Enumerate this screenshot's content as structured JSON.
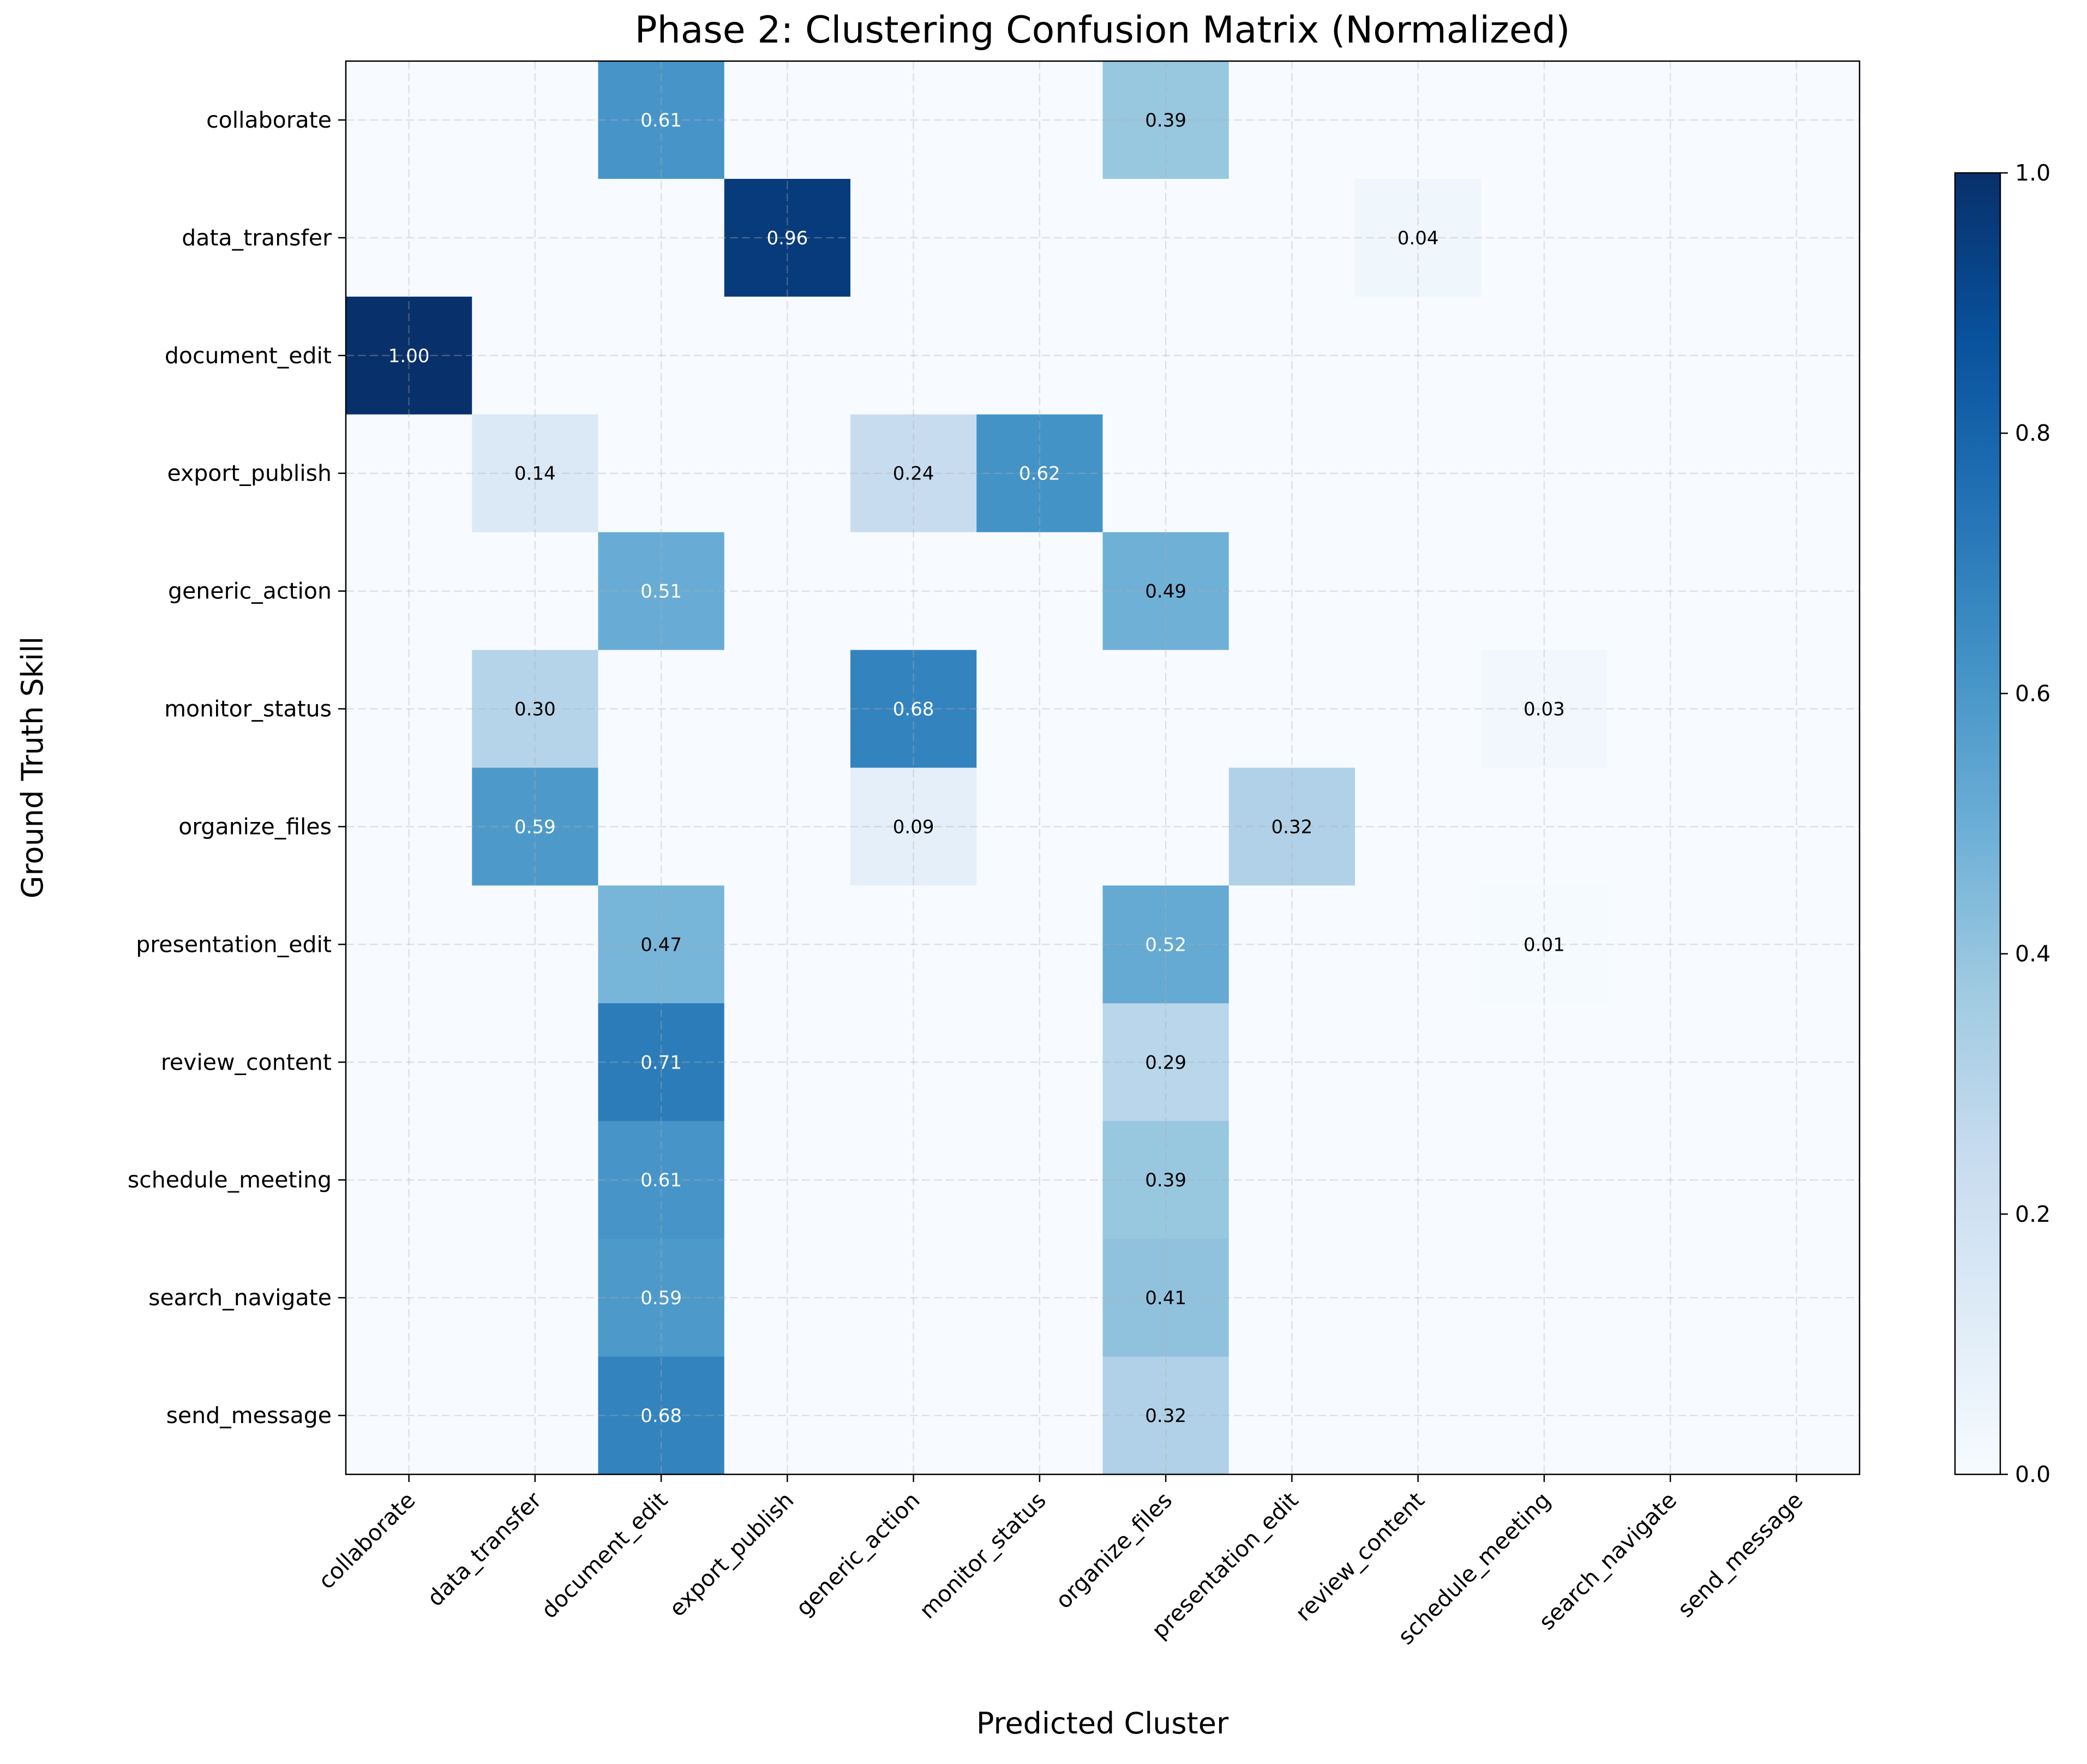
{
  "chart_data": {
    "type": "heatmap",
    "title": "Phase 2: Clustering Confusion Matrix (Normalized)",
    "xlabel": "Predicted Cluster",
    "ylabel": "Ground Truth Skill",
    "x_categories": [
      "collaborate",
      "data_transfer",
      "document_edit",
      "export_publish",
      "generic_action",
      "monitor_status",
      "organize_files",
      "presentation_edit",
      "review_content",
      "schedule_meeting",
      "search_navigate",
      "send_message"
    ],
    "y_categories": [
      "collaborate",
      "data_transfer",
      "document_edit",
      "export_publish",
      "generic_action",
      "monitor_status",
      "organize_files",
      "presentation_edit",
      "review_content",
      "schedule_meeting",
      "search_navigate",
      "send_message"
    ],
    "values": [
      [
        0,
        0,
        0.61,
        0,
        0,
        0,
        0.39,
        0,
        0,
        0,
        0,
        0
      ],
      [
        0,
        0,
        0,
        0.96,
        0,
        0,
        0,
        0,
        0.04,
        0,
        0,
        0
      ],
      [
        1.0,
        0,
        0,
        0,
        0,
        0,
        0,
        0,
        0,
        0,
        0,
        0
      ],
      [
        0,
        0.14,
        0,
        0,
        0.24,
        0.62,
        0,
        0,
        0,
        0,
        0,
        0
      ],
      [
        0,
        0,
        0.51,
        0,
        0,
        0,
        0.49,
        0,
        0,
        0,
        0,
        0
      ],
      [
        0,
        0.3,
        0,
        0,
        0.68,
        0,
        0,
        0,
        0,
        0.03,
        0,
        0
      ],
      [
        0,
        0.59,
        0,
        0,
        0.09,
        0,
        0,
        0.32,
        0,
        0,
        0,
        0
      ],
      [
        0,
        0,
        0.47,
        0,
        0,
        0,
        0.52,
        0,
        0,
        0.01,
        0,
        0
      ],
      [
        0,
        0,
        0.71,
        0,
        0,
        0,
        0.29,
        0,
        0,
        0,
        0,
        0
      ],
      [
        0,
        0,
        0.61,
        0,
        0,
        0,
        0.39,
        0,
        0,
        0,
        0,
        0
      ],
      [
        0,
        0,
        0.59,
        0,
        0,
        0,
        0.41,
        0,
        0,
        0,
        0,
        0
      ],
      [
        0,
        0,
        0.68,
        0,
        0,
        0,
        0.32,
        0,
        0,
        0,
        0,
        0
      ]
    ],
    "colormap": "Blues",
    "vmin": 0,
    "vmax": 1,
    "colorbar_ticks": [
      "0.0",
      "0.2",
      "0.4",
      "0.6",
      "0.8",
      "1.0"
    ],
    "grid": true,
    "legend": "colorbar-right"
  }
}
